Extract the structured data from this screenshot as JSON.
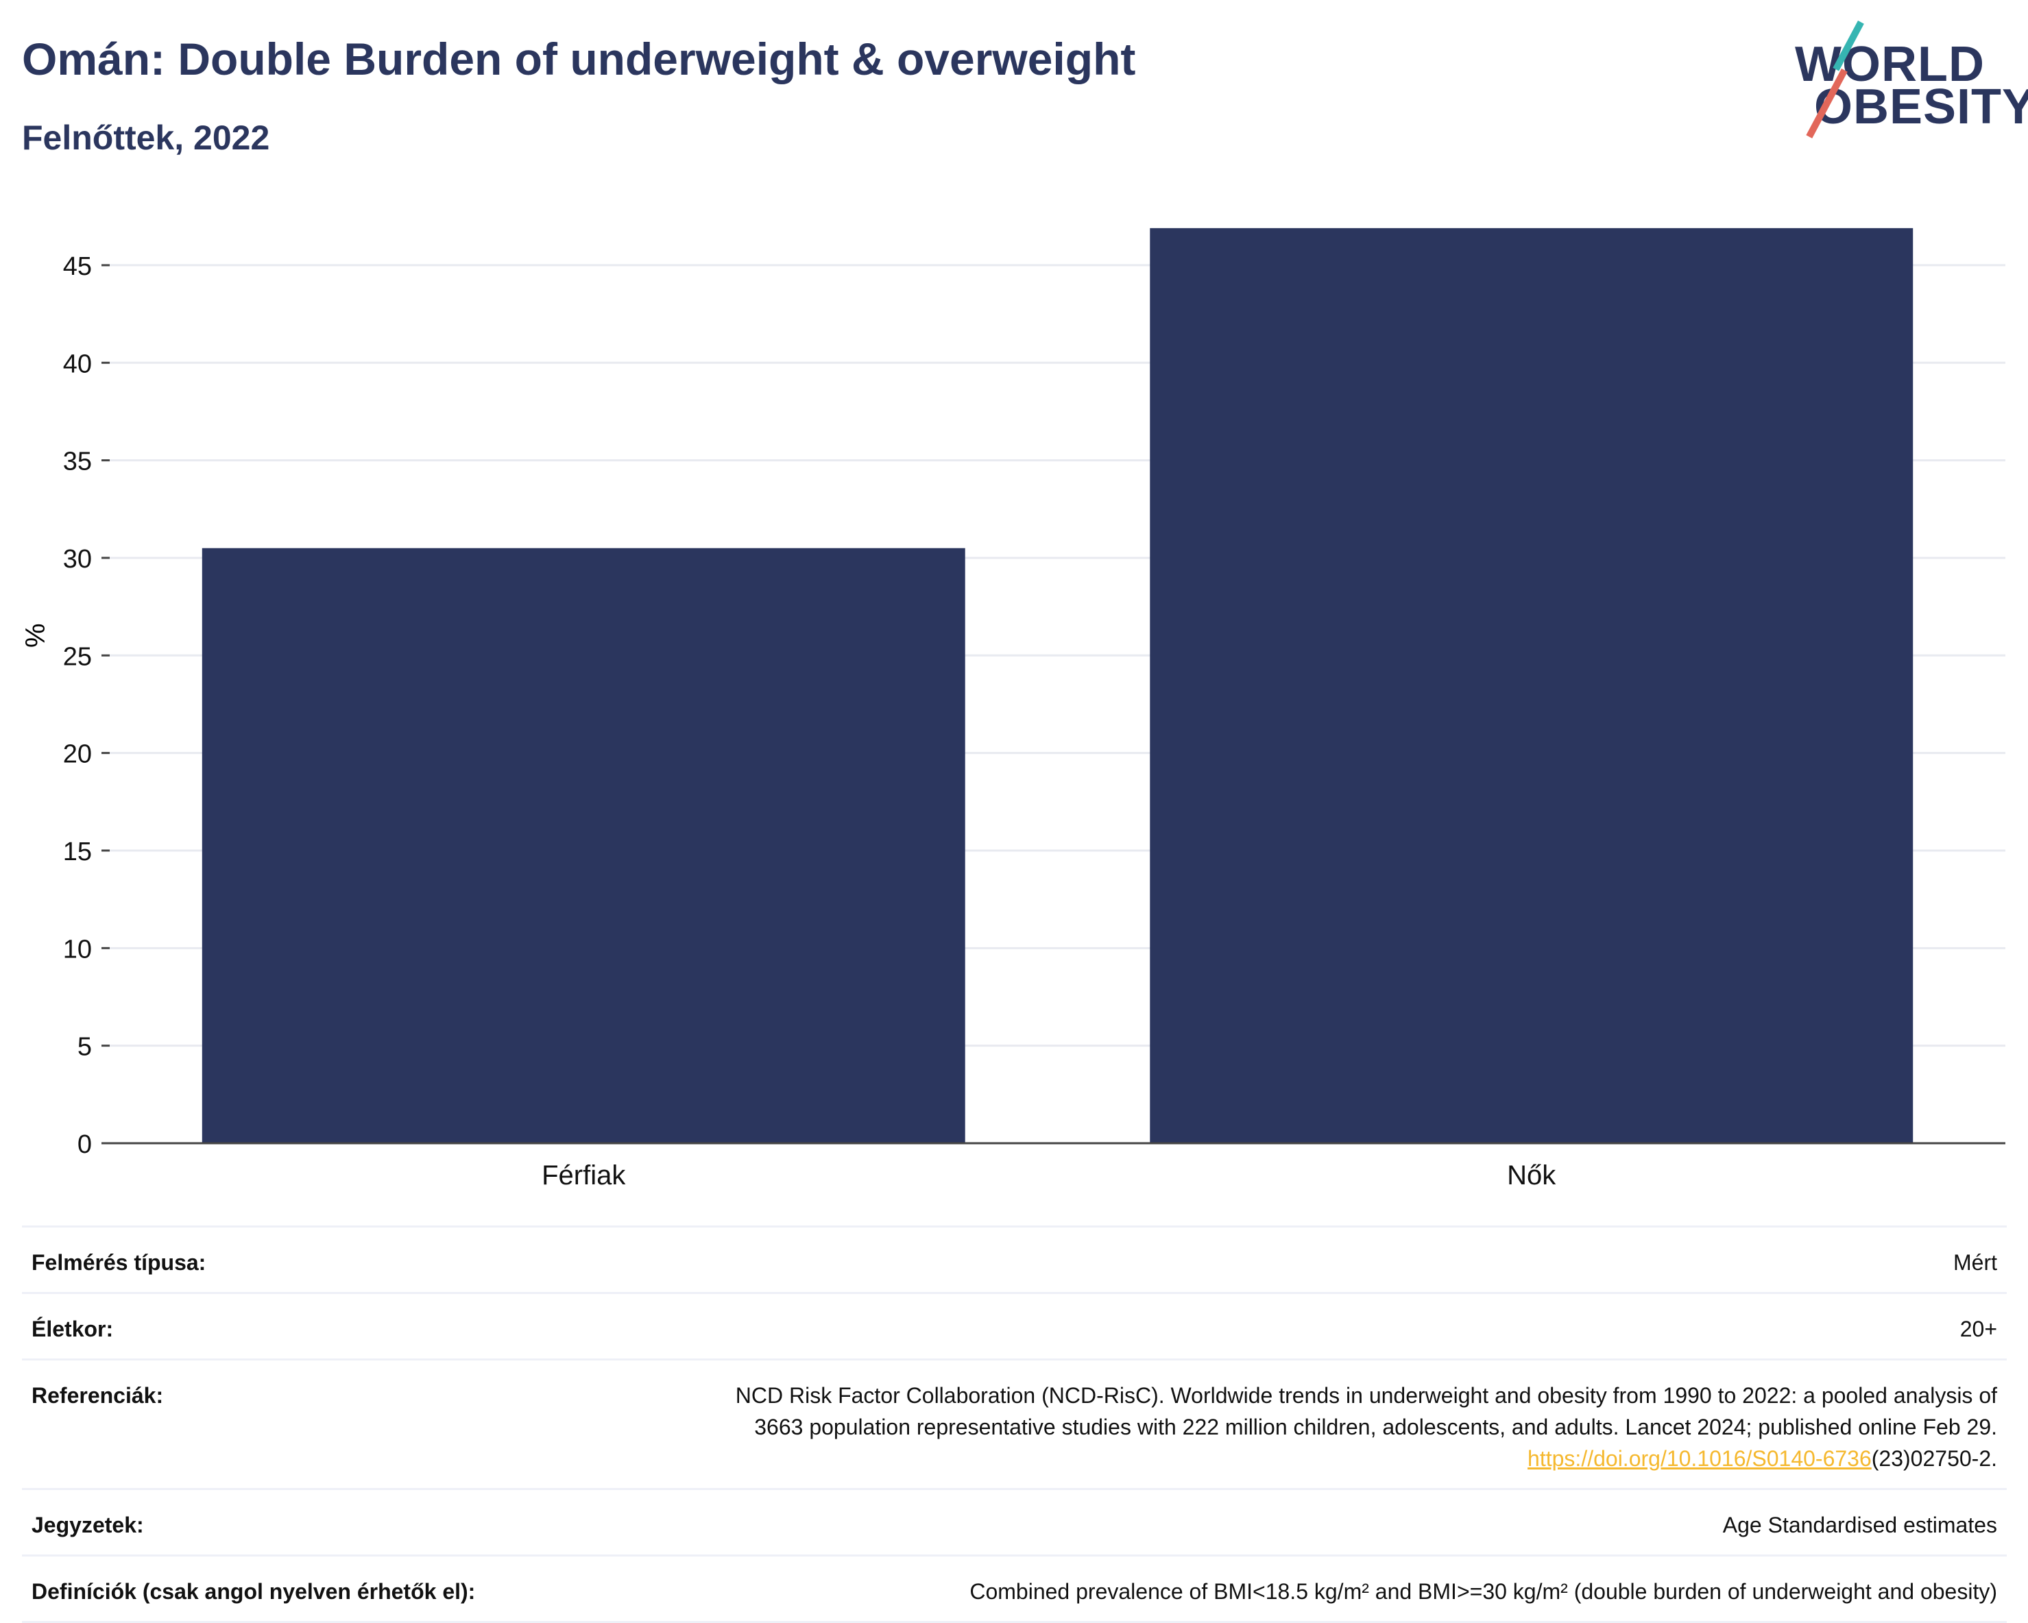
{
  "header": {
    "title": "Omán: Double Burden of underweight & overweight",
    "subtitle": "Felnőttek, 2022"
  },
  "logo": {
    "line1": "WORLD",
    "line2": "OBESITY"
  },
  "chart_data": {
    "type": "bar",
    "categories": [
      "Férfiak",
      "Nők"
    ],
    "values": [
      30.5,
      46.9
    ],
    "title": "Omán: Double Burden of underweight & overweight",
    "subtitle": "Felnőttek, 2022",
    "xlabel": "",
    "ylabel": "%",
    "ylim": [
      0,
      47
    ],
    "yticks": [
      0,
      5,
      10,
      15,
      20,
      25,
      30,
      35,
      40,
      45
    ],
    "grid": true,
    "bar_color": "#2b365e"
  },
  "info": {
    "rows": [
      {
        "label": "Felmérés típusa:",
        "value": "Mért"
      },
      {
        "label": "Életkor:",
        "value": "20+"
      },
      {
        "label": "Referenciák:",
        "value_line1": "NCD Risk Factor Collaboration (NCD-RisC). Worldwide trends in underweight and obesity from 1990 to 2022: a pooled analysis of",
        "value_line2": "3663 population representative studies with 222 million children, adolescents, and adults. Lancet 2024; published online Feb 29.",
        "link": "https://doi.org/10.1016/S0140-6736",
        "link_suffix": "(23)02750-2."
      },
      {
        "label": "Jegyzetek:",
        "value": "Age Standardised estimates"
      },
      {
        "label": "Definíciók (csak angol nyelven érhetők el):",
        "value": "Combined prevalence of BMI<18.5 kg/m² and BMI>=30 kg/m² (double burden of underweight and obesity)"
      }
    ]
  },
  "colors": {
    "brand": "#2b365e",
    "link": "#f5b82e",
    "accent_teal": "#36b5b2",
    "accent_coral": "#e2675a"
  }
}
